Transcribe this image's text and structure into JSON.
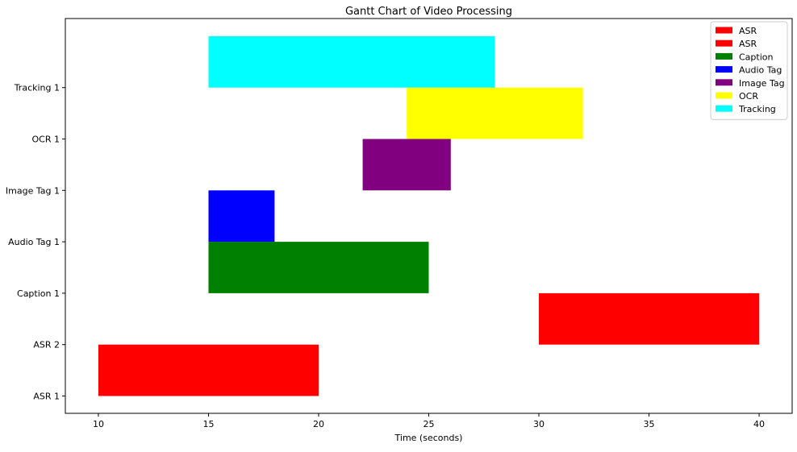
{
  "chart_data": {
    "type": "bar",
    "orientation": "horizontal-gantt",
    "title": "Gantt Chart of Video Processing",
    "xlabel": "Time (seconds)",
    "ylabel": "",
    "xlim": [
      8.5,
      41.5
    ],
    "xticks": [
      10,
      15,
      20,
      25,
      30,
      35,
      40
    ],
    "categories": [
      "ASR 1",
      "ASR 2",
      "Caption 1",
      "Audio Tag 1",
      "Image Tag 1",
      "OCR 1",
      "Tracking 1"
    ],
    "tasks": [
      {
        "category_index": 0,
        "legend": "ASR",
        "start": 10,
        "end": 20,
        "color": "#ff0000"
      },
      {
        "category_index": 1,
        "legend": "ASR",
        "start": 30,
        "end": 40,
        "color": "#ff0000"
      },
      {
        "category_index": 2,
        "legend": "Caption",
        "start": 15,
        "end": 25,
        "color": "#008000"
      },
      {
        "category_index": 3,
        "legend": "Audio Tag",
        "start": 15,
        "end": 18,
        "color": "#0000ff"
      },
      {
        "category_index": 4,
        "legend": "Image Tag",
        "start": 22,
        "end": 26,
        "color": "#800080"
      },
      {
        "category_index": 5,
        "legend": "OCR",
        "start": 24,
        "end": 32,
        "color": "#ffff00"
      },
      {
        "category_index": 6,
        "legend": "Tracking",
        "start": 15,
        "end": 28,
        "color": "#00ffff"
      }
    ],
    "legend": {
      "position": "top-right",
      "entries": [
        {
          "label": "ASR",
          "color": "#ff0000"
        },
        {
          "label": "ASR",
          "color": "#ff0000"
        },
        {
          "label": "Caption",
          "color": "#008000"
        },
        {
          "label": "Audio Tag",
          "color": "#0000ff"
        },
        {
          "label": "Image Tag",
          "color": "#800080"
        },
        {
          "label": "OCR",
          "color": "#ffff00"
        },
        {
          "label": "Tracking",
          "color": "#00ffff"
        }
      ]
    },
    "grid": false
  }
}
